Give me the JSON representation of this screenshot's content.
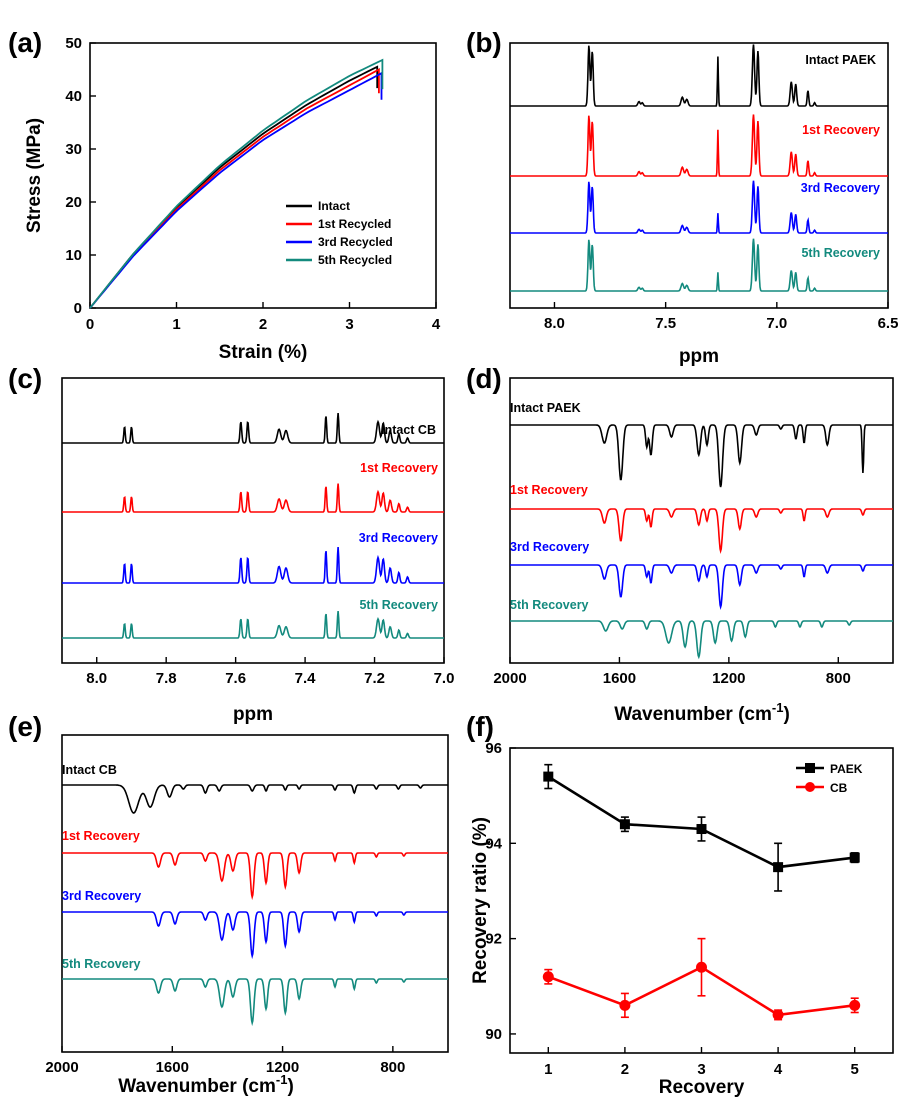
{
  "chart_data": [
    {
      "panel": "(a)",
      "type": "line",
      "xlabel": "Strain (%)",
      "ylabel": "Stress (MPa)",
      "xlim": [
        0,
        4
      ],
      "ylim": [
        0,
        50
      ],
      "xticks": [
        "0",
        "1",
        "2",
        "3",
        "4"
      ],
      "yticks": [
        "0",
        "10",
        "20",
        "30",
        "40",
        "50"
      ],
      "legend_position": "bottom-right",
      "series": [
        {
          "name": "Intact",
          "color": "#000000",
          "break_strain": 3.32,
          "break_stress": 45.5,
          "x": [
            0,
            0.5,
            1.0,
            1.5,
            2.0,
            2.5,
            3.0,
            3.32
          ],
          "y": [
            0,
            10.2,
            19.0,
            26.5,
            32.9,
            38.3,
            42.9,
            45.5
          ]
        },
        {
          "name": "1st Recycled",
          "color": "#ff0000",
          "break_strain": 3.34,
          "break_stress": 45.0,
          "x": [
            0,
            0.5,
            1.0,
            1.5,
            2.0,
            2.5,
            3.0,
            3.34
          ],
          "y": [
            0,
            9.9,
            18.6,
            26.0,
            32.3,
            37.6,
            42.0,
            45.0
          ]
        },
        {
          "name": "3rd Recycled",
          "color": "#0000ff",
          "break_strain": 3.37,
          "break_stress": 44.3,
          "x": [
            0,
            0.5,
            1.0,
            1.5,
            2.0,
            2.5,
            3.0,
            3.37
          ],
          "y": [
            0,
            9.8,
            18.3,
            25.5,
            31.7,
            36.8,
            41.1,
            44.3
          ]
        },
        {
          "name": "5th Recycled",
          "color": "#138a7e",
          "break_strain": 3.38,
          "break_stress": 46.8,
          "x": [
            0,
            0.5,
            1.0,
            1.5,
            2.0,
            2.5,
            3.0,
            3.38
          ],
          "y": [
            0,
            10.2,
            19.2,
            26.9,
            33.5,
            39.1,
            43.8,
            46.8
          ]
        }
      ]
    },
    {
      "panel": "(b)",
      "type": "line",
      "xlabel": "ppm",
      "xlim": [
        8.2,
        6.5
      ],
      "xticks": [
        "8.0",
        "7.5",
        "7.0",
        "6.5"
      ],
      "peaks_ppm": [
        7.85,
        7.84,
        7.62,
        7.42,
        7.41,
        7.26,
        7.1,
        7.08,
        6.93,
        6.92,
        6.85
      ],
      "series": [
        {
          "name": "Intact PAEK",
          "color": "#000000"
        },
        {
          "name": "1st Recovery",
          "color": "#ff0000"
        },
        {
          "name": "3rd Recovery",
          "color": "#0000ff"
        },
        {
          "name": "5th Recovery",
          "color": "#138a7e"
        }
      ]
    },
    {
      "panel": "(c)",
      "type": "line",
      "xlabel": "ppm",
      "xlim": [
        8.1,
        7.0
      ],
      "xticks": [
        "8.0",
        "7.8",
        "7.6",
        "7.4",
        "7.2",
        "7.0"
      ],
      "peaks_ppm": [
        7.92,
        7.9,
        7.58,
        7.56,
        7.47,
        7.46,
        7.34,
        7.3,
        7.19,
        7.17,
        7.15,
        7.12,
        7.1
      ],
      "series": [
        {
          "name": "Intact CB",
          "color": "#000000"
        },
        {
          "name": "1st Recovery",
          "color": "#ff0000"
        },
        {
          "name": "3rd Recovery",
          "color": "#0000ff"
        },
        {
          "name": "5th Recovery",
          "color": "#138a7e"
        }
      ]
    },
    {
      "panel": "(d)",
      "type": "line",
      "xlabel": "Wavenumber (cm",
      "xlabel_sup": "-1",
      "xlabel_end": ")",
      "xlim": [
        2000,
        600
      ],
      "xticks": [
        "2000",
        "1600",
        "1200",
        "800"
      ],
      "bands_cm-1": [
        1655,
        1595,
        1500,
        1410,
        1310,
        1225,
        1160,
        1100,
        1010,
        930,
        840,
        710
      ],
      "series": [
        {
          "name": "Intact PAEK",
          "color": "#000000"
        },
        {
          "name": "1st Recovery",
          "color": "#ff0000"
        },
        {
          "name": "3rd Recovery",
          "color": "#0000ff"
        },
        {
          "name": "5th Recovery",
          "color": "#138a7e"
        }
      ]
    },
    {
      "panel": "(e)",
      "type": "line",
      "xlabel": "Wavenumber (cm",
      "xlabel_sup": "-1",
      "xlabel_end": ")",
      "xlim": [
        2000,
        600
      ],
      "xticks": [
        "2000",
        "1600",
        "1200",
        "800"
      ],
      "bands_cm-1": [
        1650,
        1590,
        1480,
        1420,
        1310,
        1260,
        1190,
        1140,
        1010,
        940,
        860,
        760
      ],
      "series": [
        {
          "name": "Intact CB",
          "color": "#000000"
        },
        {
          "name": "1st Recovery",
          "color": "#ff0000"
        },
        {
          "name": "3rd Recovery",
          "color": "#0000ff"
        },
        {
          "name": "5th Recovery",
          "color": "#138a7e"
        }
      ]
    },
    {
      "panel": "(f)",
      "type": "line",
      "xlabel": "Recovery",
      "ylabel": "Recovery ratio (%)",
      "xlim": [
        0.5,
        5.5
      ],
      "ylim": [
        89.6,
        96.0
      ],
      "xticks": [
        "1",
        "2",
        "3",
        "4",
        "5"
      ],
      "yticks": [
        "90",
        "92",
        "94",
        "96"
      ],
      "legend_position": "top-right",
      "categories": [
        1,
        2,
        3,
        4,
        5
      ],
      "series": [
        {
          "name": "PAEK",
          "color": "#000000",
          "marker": "square",
          "values": [
            95.4,
            94.4,
            94.3,
            93.5,
            93.7
          ],
          "errors": [
            0.25,
            0.15,
            0.25,
            0.5,
            0.1
          ]
        },
        {
          "name": "CB",
          "color": "#ff0000",
          "marker": "circle",
          "values": [
            91.2,
            90.6,
            91.4,
            90.4,
            90.6
          ],
          "errors": [
            0.15,
            0.25,
            0.6,
            0.1,
            0.15
          ]
        }
      ]
    }
  ]
}
